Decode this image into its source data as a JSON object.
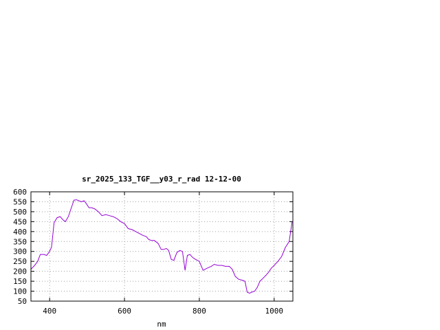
{
  "chart_data": {
    "type": "line",
    "title": "sr_2025_133_TGF__y03_r_rad 12-12-00",
    "xlabel": "nm",
    "ylabel": "",
    "xlim": [
      350,
      1050
    ],
    "ylim": [
      50,
      600
    ],
    "x_ticks": [
      400,
      600,
      800,
      1000
    ],
    "y_ticks": [
      50,
      100,
      150,
      200,
      250,
      300,
      350,
      400,
      450,
      500,
      550,
      600
    ],
    "grid": true,
    "line_color": "#9400d3",
    "series": [
      {
        "x": [
          350,
          360,
          368,
          375,
          385,
          392,
          398,
          405,
          412,
          420,
          428,
          435,
          442,
          450,
          458,
          465,
          472,
          478,
          485,
          492,
          498,
          505,
          512,
          520,
          530,
          540,
          550,
          560,
          570,
          580,
          590,
          600,
          610,
          620,
          630,
          640,
          650,
          658,
          665,
          672,
          680,
          690,
          698,
          705,
          712,
          718,
          725,
          732,
          740,
          748,
          755,
          762,
          768,
          775,
          782,
          790,
          800,
          810,
          820,
          832,
          840,
          850,
          860,
          870,
          880,
          888,
          896,
          905,
          915,
          922,
          928,
          934,
          940,
          948,
          955,
          962,
          970,
          978,
          985,
          992,
          1000,
          1010,
          1020,
          1030,
          1040,
          1048
        ],
        "y": [
          210,
          230,
          250,
          285,
          285,
          280,
          295,
          320,
          445,
          470,
          475,
          460,
          450,
          475,
          520,
          558,
          560,
          555,
          550,
          555,
          540,
          520,
          520,
          515,
          500,
          480,
          485,
          480,
          475,
          465,
          450,
          440,
          415,
          410,
          400,
          390,
          380,
          375,
          360,
          355,
          355,
          340,
          310,
          310,
          315,
          305,
          260,
          255,
          295,
          305,
          300,
          205,
          280,
          285,
          270,
          260,
          250,
          205,
          215,
          225,
          235,
          230,
          230,
          225,
          225,
          210,
          175,
          160,
          155,
          150,
          95,
          90,
          95,
          100,
          120,
          150,
          165,
          180,
          195,
          215,
          230,
          250,
          275,
          320,
          350,
          450
        ]
      }
    ]
  }
}
